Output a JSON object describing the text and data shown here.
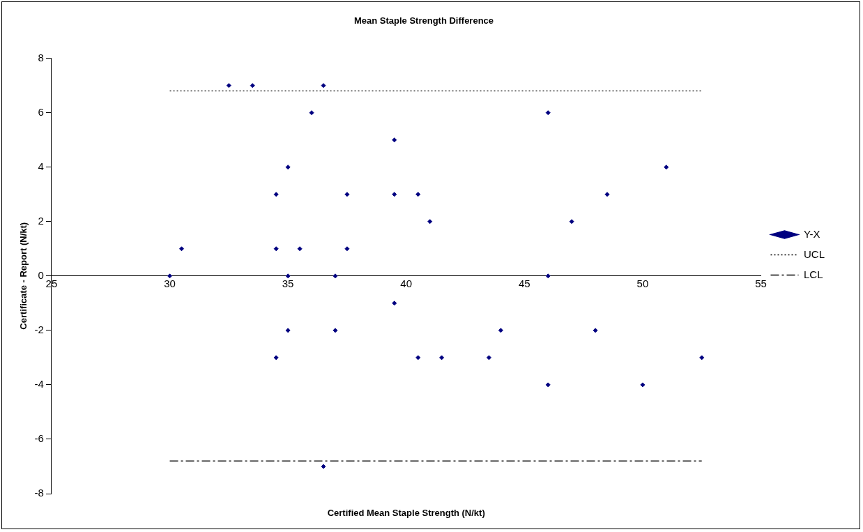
{
  "chart_data": {
    "type": "scatter",
    "title": "Mean Staple Strength Difference",
    "xlabel": "Certified Mean Staple Strength (N/kt)",
    "ylabel": "Certificate - Report (N/kt)",
    "xlim": [
      25,
      55
    ],
    "xticks": [
      25,
      30,
      35,
      40,
      45,
      50,
      55
    ],
    "ylim": [
      -8,
      8
    ],
    "yticks": [
      -8,
      -6,
      -4,
      -2,
      0,
      2,
      4,
      6,
      8
    ],
    "grid": false,
    "legend": "right",
    "marker": "diamond",
    "series": [
      {
        "name": "Y-X",
        "color": "#000080",
        "type": "scatter",
        "x": [
          30,
          30.5,
          32.5,
          33.5,
          36.5,
          36,
          39.5,
          35,
          34.5,
          34.5,
          35.5,
          35,
          37.5,
          37.5,
          37,
          39.5,
          40.5,
          41,
          39.5,
          35,
          37,
          34.5,
          40.5,
          41.5,
          43.5,
          44,
          46,
          46,
          46,
          47,
          48.5,
          48,
          51,
          50,
          52.5,
          36.5
        ],
        "values": [
          0,
          1,
          7,
          7,
          7,
          6,
          5,
          4,
          3,
          1,
          1,
          0,
          3,
          1,
          0,
          3,
          3,
          2,
          -1,
          -2,
          -2,
          -3,
          -3,
          -3,
          -3,
          -2,
          6,
          0,
          -4,
          2,
          3,
          -2,
          4,
          -4,
          -3,
          -7
        ]
      },
      {
        "name": "UCL",
        "color": "#000000",
        "type": "line",
        "line_style": "dotted",
        "marker": "none",
        "x": [
          30,
          52.5
        ],
        "values": [
          6.8,
          6.8
        ]
      },
      {
        "name": "LCL",
        "color": "#000000",
        "type": "line",
        "line_style": "dashed",
        "marker": "none",
        "x": [
          30,
          52.5
        ],
        "values": [
          -6.8,
          -6.8
        ]
      }
    ]
  }
}
